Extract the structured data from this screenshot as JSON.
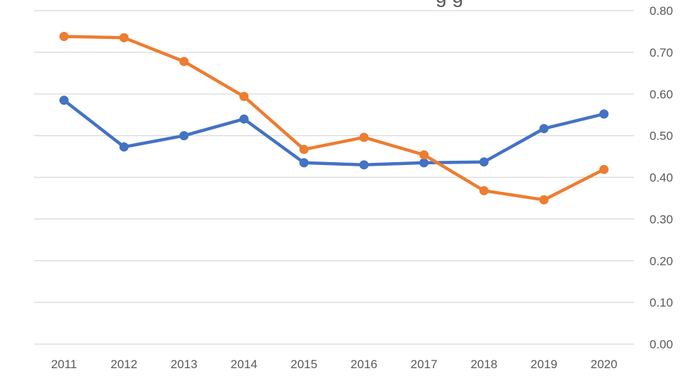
{
  "chart_data": {
    "type": "line",
    "title_visible_fragment": "g g",
    "categories": [
      "2011",
      "2012",
      "2013",
      "2014",
      "2015",
      "2016",
      "2017",
      "2018",
      "2019",
      "2020"
    ],
    "y_axis": {
      "position": "right",
      "ylim": [
        0,
        0.8
      ],
      "ticks": [
        "0.00",
        "0.10",
        "0.20",
        "0.30",
        "0.40",
        "0.50",
        "0.60",
        "0.70",
        "0.80"
      ]
    },
    "grid": true,
    "series": [
      {
        "color": "#4472c4",
        "values": [
          0.585,
          0.473,
          0.5,
          0.54,
          0.435,
          0.43,
          0.435,
          0.437,
          0.517,
          0.552
        ]
      },
      {
        "color": "#ed7d31",
        "values": [
          0.738,
          0.735,
          0.678,
          0.594,
          0.467,
          0.496,
          0.454,
          0.368,
          0.346,
          0.419
        ]
      }
    ]
  }
}
